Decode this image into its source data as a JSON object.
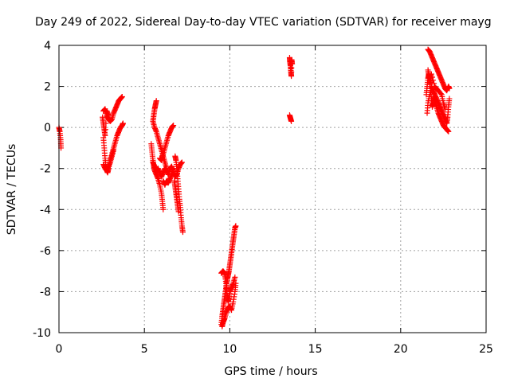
{
  "chart_data": {
    "type": "scatter",
    "title": "Day 249 of 2022, Sidereal Day-to-day VTEC variation (SDTVAR) for receiver mayg",
    "xlabel": "GPS time / hours",
    "ylabel": "SDTVAR / TECUs",
    "xlim": [
      0,
      25
    ],
    "ylim": [
      -10,
      4
    ],
    "xticks": [
      0,
      5,
      10,
      15,
      20,
      25
    ],
    "yticks": [
      -10,
      -8,
      -6,
      -4,
      -2,
      0,
      2,
      4
    ],
    "grid": true,
    "marker": "+",
    "color": "#ff0000",
    "series": [
      {
        "name": "SDTVAR",
        "segments": [
          [
            [
              0.0,
              0.0
            ],
            [
              0.05,
              -0.2
            ],
            [
              0.1,
              -0.6
            ],
            [
              0.12,
              -1.0
            ]
          ],
          [
            [
              2.6,
              0.8
            ],
            [
              2.7,
              0.9
            ],
            [
              2.8,
              0.6
            ],
            [
              2.9,
              0.4
            ],
            [
              3.0,
              0.3
            ],
            [
              3.1,
              0.4
            ],
            [
              3.2,
              0.7
            ],
            [
              3.3,
              0.9
            ],
            [
              3.4,
              1.1
            ],
            [
              3.5,
              1.3
            ],
            [
              3.6,
              1.4
            ],
            [
              3.7,
              1.5
            ]
          ],
          [
            [
              2.6,
              -0.5
            ],
            [
              2.65,
              -1.0
            ],
            [
              2.7,
              -1.5
            ],
            [
              2.75,
              -1.9
            ],
            [
              2.8,
              -2.1
            ],
            [
              2.85,
              -2.2
            ],
            [
              2.9,
              -2.0
            ],
            [
              3.0,
              -1.6
            ],
            [
              3.1,
              -1.3
            ],
            [
              3.2,
              -1.0
            ],
            [
              3.3,
              -0.7
            ],
            [
              3.4,
              -0.4
            ],
            [
              3.5,
              -0.2
            ],
            [
              3.6,
              0.0
            ],
            [
              3.7,
              0.1
            ],
            [
              3.75,
              0.2
            ]
          ],
          [
            [
              2.6,
              -1.8
            ],
            [
              2.7,
              -2.0
            ],
            [
              2.8,
              -2.1
            ],
            [
              2.9,
              -1.9
            ],
            [
              3.0,
              -1.7
            ],
            [
              3.1,
              -1.4
            ],
            [
              3.2,
              -1.1
            ]
          ],
          [
            [
              2.55,
              0.5
            ],
            [
              2.6,
              0.2
            ],
            [
              2.65,
              -0.1
            ],
            [
              2.7,
              -0.4
            ],
            [
              2.8,
              0.8
            ],
            [
              2.9,
              0.6
            ]
          ],
          [
            [
              5.7,
              1.3
            ],
            [
              5.65,
              1.1
            ],
            [
              5.6,
              0.9
            ],
            [
              5.55,
              0.6
            ],
            [
              5.5,
              0.3
            ],
            [
              5.6,
              0.0
            ],
            [
              5.7,
              -0.2
            ],
            [
              5.8,
              -0.5
            ],
            [
              5.9,
              -0.8
            ],
            [
              6.0,
              -1.1
            ],
            [
              6.1,
              -1.4
            ],
            [
              6.2,
              -1.7
            ],
            [
              6.3,
              -2.0
            ]
          ],
          [
            [
              5.4,
              -0.8
            ],
            [
              5.45,
              -1.2
            ],
            [
              5.5,
              -1.6
            ],
            [
              5.55,
              -1.9
            ],
            [
              5.6,
              -2.1
            ],
            [
              5.7,
              -2.3
            ],
            [
              5.8,
              -2.5
            ],
            [
              5.9,
              -2.8
            ],
            [
              6.0,
              -3.2
            ],
            [
              6.05,
              -3.6
            ],
            [
              6.1,
              -4.0
            ]
          ],
          [
            [
              5.5,
              -1.7
            ],
            [
              5.6,
              -1.9
            ],
            [
              5.7,
              -2.1
            ],
            [
              5.8,
              -2.0
            ],
            [
              5.9,
              -2.2
            ],
            [
              6.0,
              -2.4
            ],
            [
              6.1,
              -2.2
            ],
            [
              6.2,
              -2.0
            ],
            [
              6.3,
              -2.1
            ],
            [
              6.4,
              -2.3
            ],
            [
              6.5,
              -2.0
            ],
            [
              6.6,
              -1.9
            ],
            [
              6.7,
              -2.2
            ],
            [
              6.8,
              -2.4
            ],
            [
              6.9,
              -2.3
            ],
            [
              7.0,
              -2.0
            ],
            [
              7.1,
              -1.8
            ],
            [
              7.2,
              -1.7
            ]
          ],
          [
            [
              5.9,
              -1.5
            ],
            [
              6.0,
              -1.6
            ],
            [
              6.1,
              -1.3
            ],
            [
              6.2,
              -1.0
            ],
            [
              6.3,
              -0.7
            ],
            [
              6.4,
              -0.4
            ],
            [
              6.5,
              -0.2
            ],
            [
              6.6,
              0.0
            ],
            [
              6.7,
              0.1
            ]
          ],
          [
            [
              6.1,
              -2.6
            ],
            [
              6.2,
              -2.8
            ],
            [
              6.3,
              -2.6
            ],
            [
              6.4,
              -2.7
            ],
            [
              6.5,
              -2.5
            ],
            [
              6.6,
              -2.3
            ],
            [
              6.7,
              -2.0
            ]
          ],
          [
            [
              6.8,
              -1.4
            ],
            [
              6.85,
              -1.6
            ],
            [
              6.9,
              -2.0
            ],
            [
              6.95,
              -2.5
            ],
            [
              7.0,
              -3.0
            ],
            [
              7.05,
              -3.5
            ],
            [
              7.1,
              -3.9
            ],
            [
              7.15,
              -4.4
            ],
            [
              7.2,
              -4.8
            ],
            [
              7.25,
              -5.1
            ]
          ],
          [
            [
              6.75,
              -2.6
            ],
            [
              6.8,
              -2.9
            ],
            [
              6.85,
              -3.2
            ],
            [
              6.9,
              -3.5
            ],
            [
              6.95,
              -3.8
            ],
            [
              7.0,
              -4.1
            ]
          ],
          [
            [
              9.5,
              -9.6
            ],
            [
              9.55,
              -9.2
            ],
            [
              9.6,
              -8.9
            ],
            [
              9.65,
              -8.6
            ],
            [
              9.7,
              -8.3
            ],
            [
              9.75,
              -8.0
            ],
            [
              9.8,
              -7.7
            ],
            [
              9.85,
              -7.4
            ],
            [
              9.9,
              -7.2
            ],
            [
              9.95,
              -7.0
            ],
            [
              10.0,
              -6.7
            ],
            [
              10.05,
              -6.4
            ],
            [
              10.1,
              -6.1
            ],
            [
              10.15,
              -5.8
            ],
            [
              10.2,
              -5.5
            ],
            [
              10.25,
              -5.2
            ],
            [
              10.3,
              -4.9
            ],
            [
              10.35,
              -4.8
            ]
          ],
          [
            [
              9.5,
              -7.1
            ],
            [
              9.6,
              -7.0
            ],
            [
              9.7,
              -7.1
            ],
            [
              9.75,
              -7.4
            ],
            [
              9.8,
              -7.8
            ],
            [
              9.85,
              -8.2
            ],
            [
              9.9,
              -8.5
            ],
            [
              9.95,
              -8.3
            ],
            [
              10.0,
              -8.0
            ],
            [
              10.1,
              -7.8
            ],
            [
              10.2,
              -7.6
            ],
            [
              10.3,
              -7.3
            ]
          ],
          [
            [
              9.55,
              -9.7
            ],
            [
              9.6,
              -9.5
            ],
            [
              9.65,
              -9.4
            ],
            [
              9.7,
              -9.3
            ],
            [
              9.8,
              -9.0
            ],
            [
              9.9,
              -8.8
            ],
            [
              10.0,
              -8.7
            ],
            [
              10.1,
              -8.9
            ],
            [
              10.2,
              -8.5
            ],
            [
              10.3,
              -8.0
            ],
            [
              10.35,
              -7.6
            ]
          ],
          [
            [
              13.5,
              3.4
            ],
            [
              13.52,
              3.2
            ],
            [
              13.55,
              3.0
            ],
            [
              13.58,
              2.7
            ],
            [
              13.6,
              2.5
            ],
            [
              13.62,
              3.3
            ],
            [
              13.65,
              3.1
            ]
          ],
          [
            [
              13.5,
              0.6
            ],
            [
              13.55,
              0.45
            ],
            [
              13.6,
              0.3
            ]
          ],
          [
            [
              21.6,
              3.8
            ],
            [
              21.7,
              3.7
            ],
            [
              21.8,
              3.5
            ],
            [
              21.9,
              3.3
            ],
            [
              22.0,
              3.1
            ],
            [
              22.1,
              2.9
            ],
            [
              22.2,
              2.7
            ],
            [
              22.3,
              2.5
            ],
            [
              22.4,
              2.3
            ],
            [
              22.5,
              2.1
            ],
            [
              22.6,
              1.9
            ],
            [
              22.7,
              1.8
            ],
            [
              22.8,
              2.0
            ],
            [
              22.85,
              1.9
            ]
          ],
          [
            [
              21.5,
              1.6
            ],
            [
              21.55,
              2.0
            ],
            [
              21.6,
              2.4
            ],
            [
              21.65,
              2.6
            ],
            [
              21.7,
              2.2
            ],
            [
              21.75,
              1.8
            ],
            [
              21.8,
              1.4
            ],
            [
              21.85,
              1.0
            ],
            [
              21.9,
              1.2
            ],
            [
              21.95,
              1.5
            ],
            [
              22.0,
              1.3
            ],
            [
              22.1,
              1.0
            ],
            [
              22.2,
              0.7
            ],
            [
              22.3,
              0.5
            ],
            [
              22.4,
              0.3
            ],
            [
              22.5,
              0.1
            ],
            [
              22.6,
              0.0
            ],
            [
              22.7,
              -0.1
            ],
            [
              22.8,
              -0.2
            ]
          ],
          [
            [
              21.55,
              0.7
            ],
            [
              21.6,
              1.2
            ],
            [
              21.7,
              1.6
            ],
            [
              21.8,
              2.0
            ],
            [
              21.9,
              1.8
            ],
            [
              22.0,
              1.6
            ],
            [
              22.1,
              1.4
            ],
            [
              22.2,
              1.2
            ],
            [
              22.3,
              1.0
            ],
            [
              22.4,
              0.8
            ],
            [
              22.5,
              0.6
            ],
            [
              22.6,
              0.4
            ],
            [
              22.7,
              0.2
            ],
            [
              22.75,
              0.5
            ],
            [
              22.8,
              1.0
            ],
            [
              22.85,
              1.4
            ]
          ],
          [
            [
              21.6,
              2.8
            ],
            [
              21.65,
              2.5
            ],
            [
              21.7,
              2.1
            ],
            [
              21.75,
              2.3
            ],
            [
              21.8,
              2.6
            ],
            [
              22.0,
              2.0
            ],
            [
              22.2,
              1.8
            ],
            [
              22.4,
              1.6
            ],
            [
              22.5,
              1.2
            ],
            [
              22.6,
              0.9
            ]
          ]
        ]
      }
    ]
  }
}
